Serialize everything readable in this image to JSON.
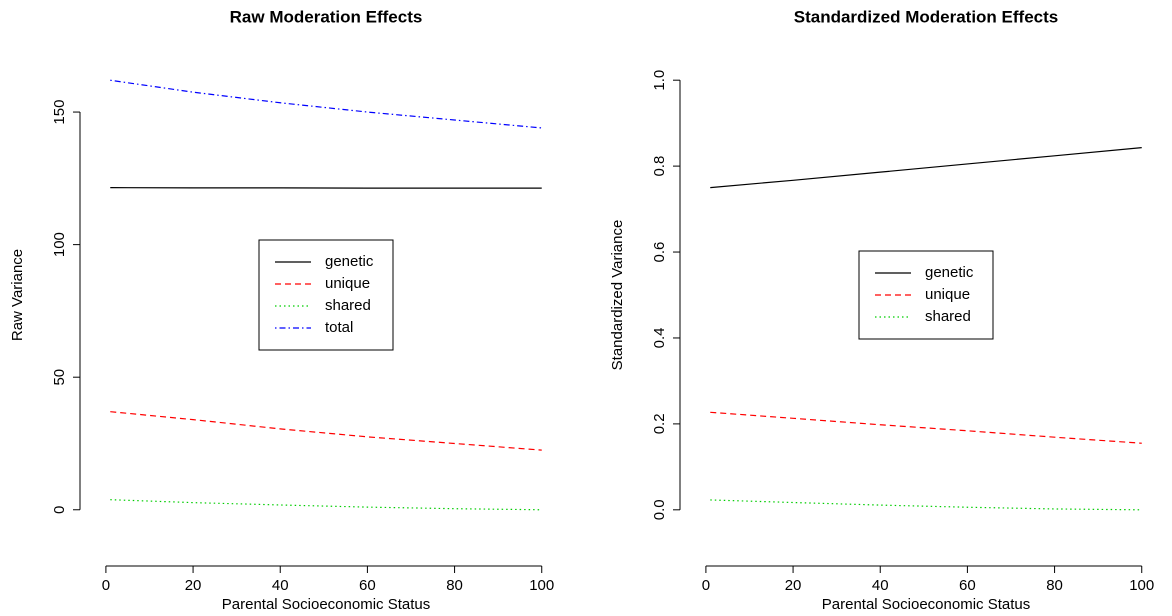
{
  "chart_data": [
    {
      "type": "line",
      "title": "Raw Moderation Effects",
      "x_label": "Parental Socioeconomic Status",
      "y_label": "Raw Variance",
      "x": [
        1,
        20,
        40,
        60,
        80,
        100
      ],
      "series": [
        {
          "name": "genetic",
          "color": "#000000",
          "dash": "solid",
          "values": [
            121.5,
            121.4,
            121.4,
            121.3,
            121.3,
            121.3
          ]
        },
        {
          "name": "unique",
          "color": "#ff0000",
          "dash": "dashed",
          "values": [
            37,
            34,
            30.5,
            27.5,
            25,
            22.5
          ]
        },
        {
          "name": "shared",
          "color": "#00cd00",
          "dash": "dotted",
          "values": [
            3.8,
            2.7,
            1.8,
            1.0,
            0.4,
            0
          ]
        },
        {
          "name": "total",
          "color": "#0000ff",
          "dash": "dotdash",
          "values": [
            162,
            157.5,
            153.5,
            150,
            147,
            144
          ]
        }
      ],
      "xlim": [
        -2.96,
        103.96
      ],
      "xticks": [
        0,
        20,
        40,
        60,
        80,
        100
      ],
      "ylim": [
        -6.5,
        168.5
      ],
      "yticks": [
        0,
        50,
        100,
        150
      ],
      "legend": "center"
    },
    {
      "type": "line",
      "title": "Standardized Moderation Effects",
      "x_label": "Parental Socioeconomic Status",
      "y_label": "Standardized Variance",
      "x": [
        1,
        20,
        40,
        60,
        80,
        100
      ],
      "series": [
        {
          "name": "genetic",
          "color": "#000000",
          "dash": "solid",
          "values": [
            0.75,
            0.767,
            0.786,
            0.805,
            0.824,
            0.843
          ]
        },
        {
          "name": "unique",
          "color": "#ff0000",
          "dash": "dashed",
          "values": [
            0.227,
            0.213,
            0.198,
            0.184,
            0.169,
            0.155
          ]
        },
        {
          "name": "shared",
          "color": "#00cd00",
          "dash": "dotted",
          "values": [
            0.023,
            0.017,
            0.011,
            0.006,
            0.002,
            0
          ]
        }
      ],
      "xlim": [
        -2.96,
        103.96
      ],
      "xticks": [
        0,
        20,
        40,
        60,
        80,
        100
      ],
      "ylim": [
        -0.04,
        1.04
      ],
      "yticks": [
        {
          "value": 0,
          "label": "0.0"
        },
        0.2,
        0.4,
        0.6,
        0.8,
        {
          "value": 1,
          "label": "1.0"
        }
      ],
      "legend": "center"
    }
  ]
}
